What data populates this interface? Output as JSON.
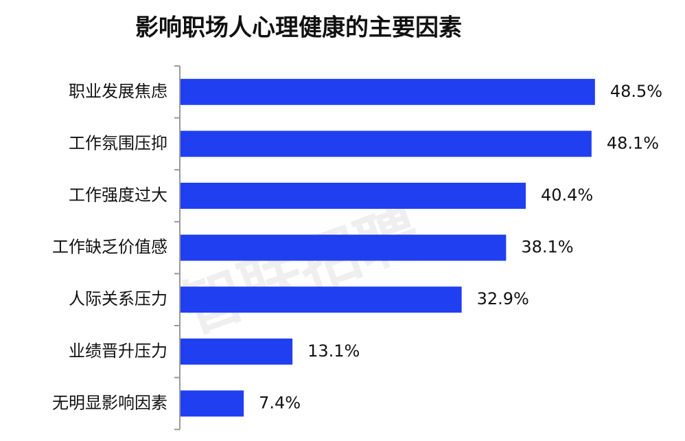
{
  "chart_data": {
    "type": "bar",
    "orientation": "horizontal",
    "title": "影响职场人心理健康的主要因素",
    "watermark": "智联招聘",
    "categories": [
      "职业发展焦虑",
      "工作氛围压抑",
      "工作强度过大",
      "工作缺乏价值感",
      "人际关系压力",
      "业绩晋升压力",
      "无明显影响因素"
    ],
    "values": [
      48.5,
      48.1,
      40.4,
      38.1,
      32.9,
      13.1,
      7.4
    ],
    "value_labels": [
      "48.5%",
      "48.1%",
      "40.4%",
      "38.1%",
      "32.9%",
      "13.1%",
      "7.4%"
    ],
    "color": "#1f3ff0"
  }
}
